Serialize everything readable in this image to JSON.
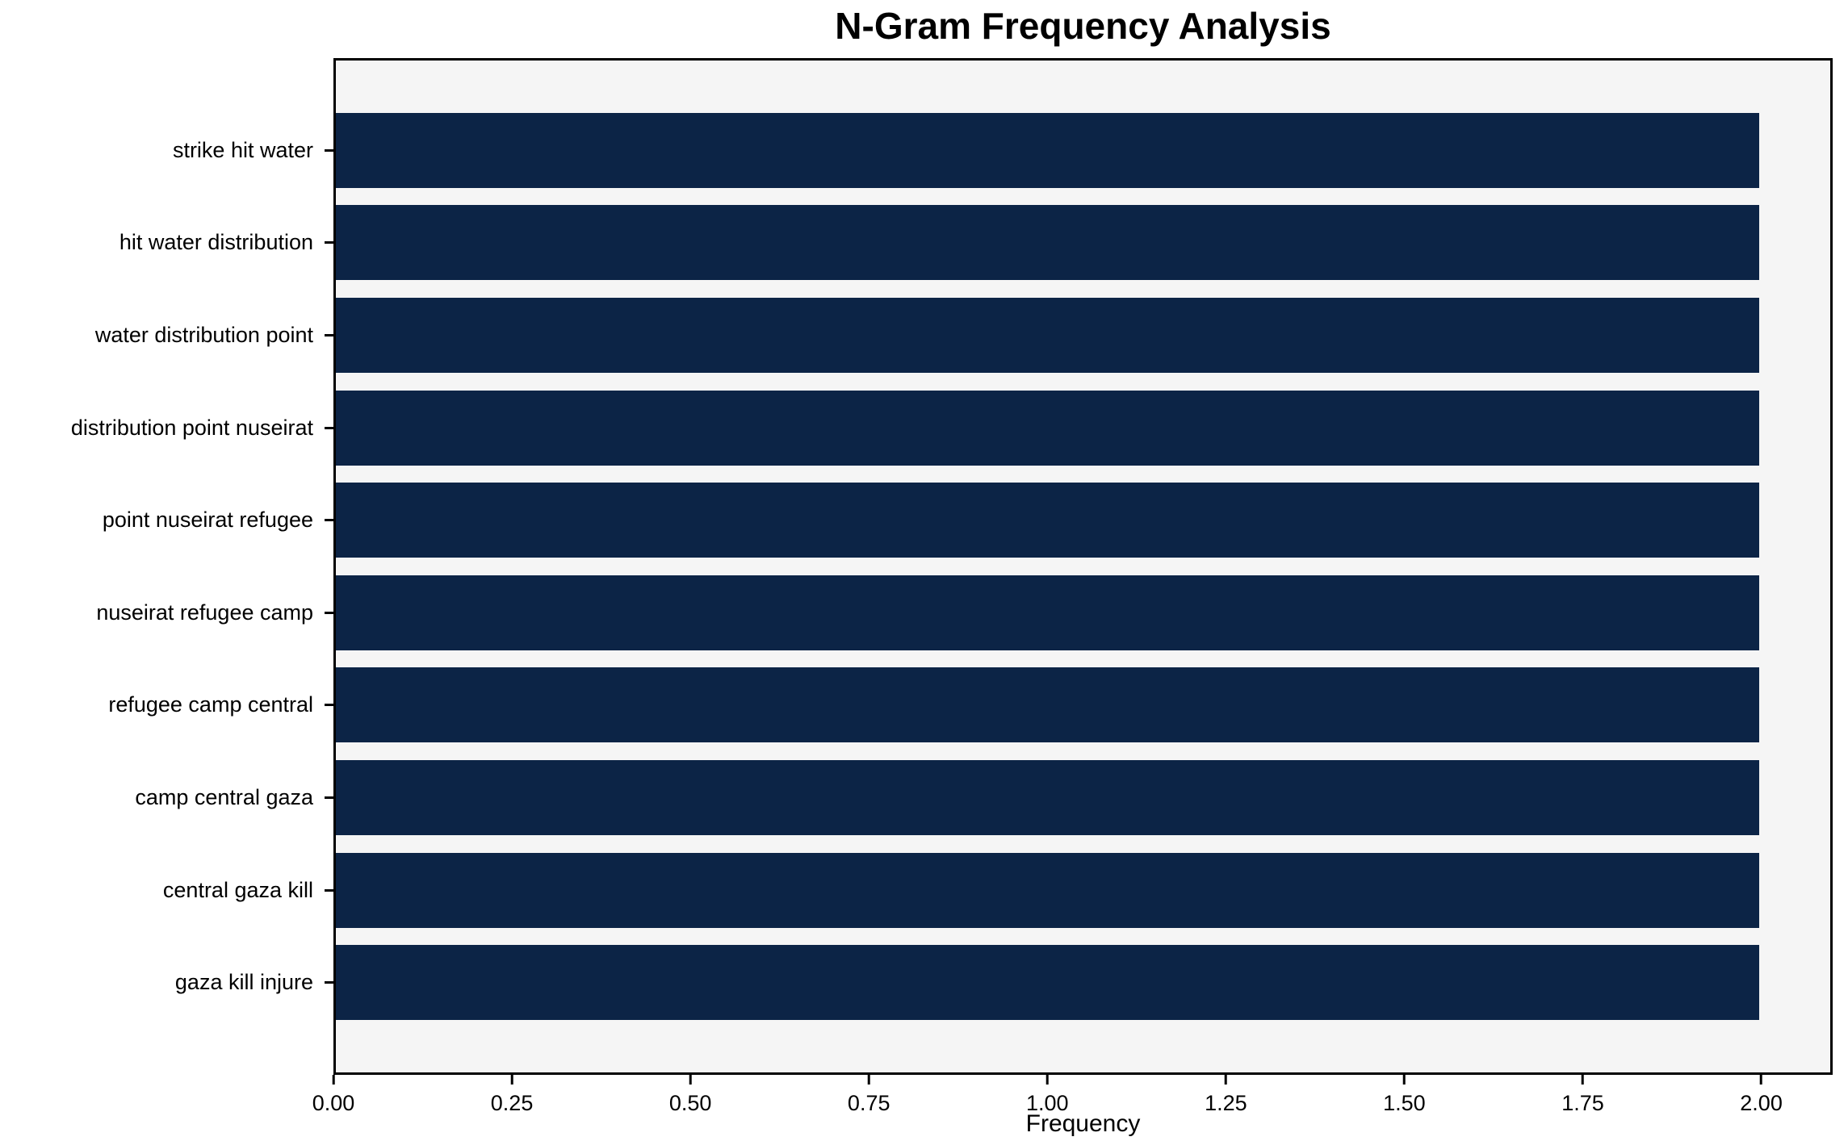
{
  "chart_data": {
    "type": "bar",
    "orientation": "horizontal",
    "title": "N-Gram Frequency Analysis",
    "xlabel": "Frequency",
    "ylabel": "",
    "categories": [
      "strike hit water",
      "hit water distribution",
      "water distribution point",
      "distribution point nuseirat",
      "point nuseirat refugee",
      "nuseirat refugee camp",
      "refugee camp central",
      "camp central gaza",
      "central gaza kill",
      "gaza kill injure"
    ],
    "values": [
      2,
      2,
      2,
      2,
      2,
      2,
      2,
      2,
      2,
      2
    ],
    "xlim": [
      0,
      2.1
    ],
    "xticks": [
      "0.00",
      "0.25",
      "0.50",
      "0.75",
      "1.00",
      "1.25",
      "1.50",
      "1.75",
      "2.00"
    ],
    "xtick_values": [
      0,
      0.25,
      0.5,
      0.75,
      1.0,
      1.25,
      1.5,
      1.75,
      2.0
    ],
    "grid": false,
    "legend": null,
    "colors": {
      "bar": "#0c2446",
      "plot_background": "#f5f5f5",
      "figure_background": "#ffffff",
      "spine": "#000000",
      "text": "#000000"
    }
  }
}
